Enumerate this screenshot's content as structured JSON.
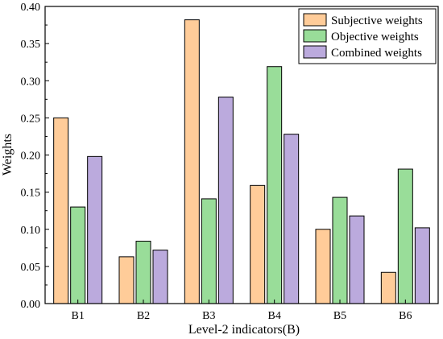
{
  "chart_data": {
    "type": "bar",
    "xlabel": "Level-2 indicators(B)",
    "ylabel": "Weights",
    "ylim": [
      0,
      0.4
    ],
    "yticks": [
      "0.00",
      "0.05",
      "0.10",
      "0.15",
      "0.20",
      "0.25",
      "0.30",
      "0.35",
      "0.40"
    ],
    "categories": [
      "B1",
      "B2",
      "B3",
      "B4",
      "B5",
      "B6"
    ],
    "series": [
      {
        "name": "Subjective weights",
        "color": "#FFCC99",
        "values": [
          0.25,
          0.063,
          0.382,
          0.159,
          0.1,
          0.042
        ]
      },
      {
        "name": "Objective weights",
        "color": "#99DD99",
        "values": [
          0.13,
          0.084,
          0.141,
          0.319,
          0.143,
          0.181
        ]
      },
      {
        "name": "Combined weights",
        "color": "#BBAADD",
        "values": [
          0.198,
          0.072,
          0.278,
          0.228,
          0.118,
          0.102
        ]
      }
    ],
    "legend_position": "top-right",
    "grid": false
  }
}
